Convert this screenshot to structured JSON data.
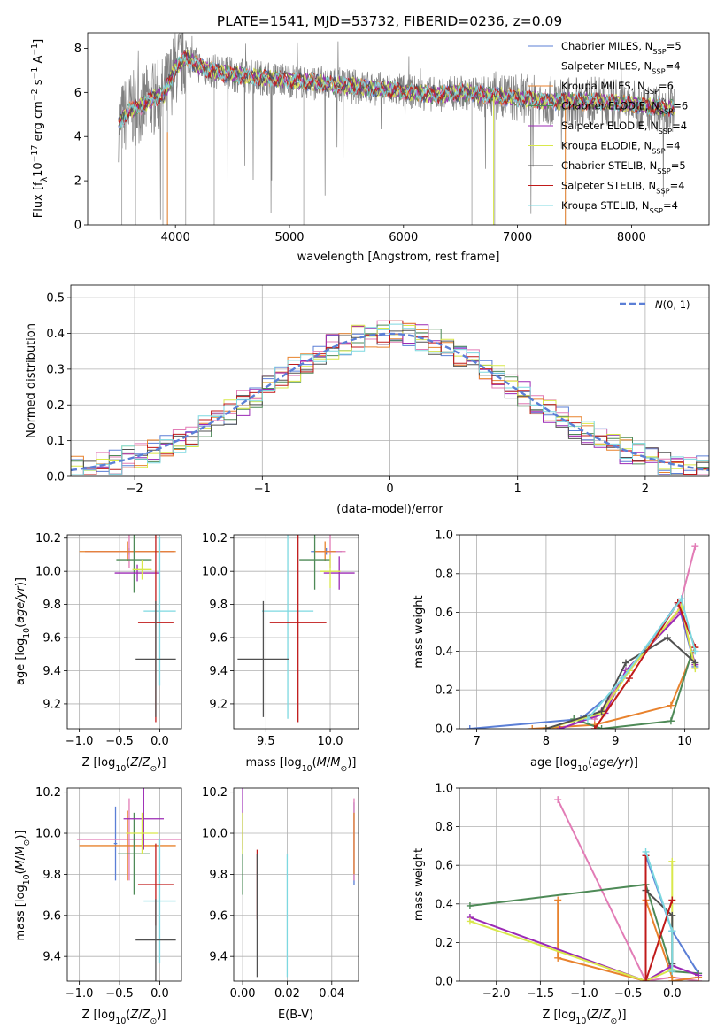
{
  "figure": {
    "title": "PLATE=1541, MJD=53732, FIBERID=0236, z=0.09"
  },
  "chart_data": [
    {
      "id": "spectrum",
      "type": "line",
      "xlabel": "wavelength [Angstrom, rest frame]",
      "ylabel": "Flux [f_λ10^-17 erg cm^-2 s^-1 A^-1]",
      "xlim": [
        3230,
        8680
      ],
      "ylim": [
        0,
        8.7
      ],
      "xticks": [
        4000,
        5000,
        6000,
        7000,
        8000
      ],
      "yticks": [
        0,
        2,
        4,
        6,
        8
      ],
      "grid": false,
      "legend_position": "top-right",
      "continuum": {
        "x": [
          3500,
          3600,
          3700,
          3800,
          3900,
          4000,
          4100,
          4200,
          4300,
          4500,
          4700,
          4900,
          5100,
          5300,
          5500,
          5700,
          5900,
          6100,
          6300,
          6500,
          6700,
          6900,
          7100,
          7300,
          7500,
          7700,
          7900,
          8100,
          8300
        ],
        "y": [
          4.6,
          5.2,
          5.4,
          5.7,
          5.9,
          7.1,
          7.6,
          7.2,
          7.0,
          6.8,
          6.7,
          6.6,
          6.5,
          6.4,
          6.3,
          6.2,
          6.1,
          6.0,
          5.9,
          6.0,
          5.9,
          5.8,
          5.7,
          5.6,
          5.6,
          5.6,
          5.5,
          5.4,
          5.3
        ]
      },
      "series": [
        {
          "label": "Chabrier MILES, N_SSP=5",
          "name": "Chabrier MILES, N",
          "sub": "SSP",
          "val": "=5",
          "color": "#5b7fd6"
        },
        {
          "label": "Salpeter MILES, N_SSP=4",
          "name": "Salpeter MILES, N",
          "sub": "SSP",
          "val": "=4",
          "color": "#e27cb6"
        },
        {
          "label": "Kroupa MILES, N_SSP=6",
          "name": "Kroupa MILES, N",
          "sub": "SSP",
          "val": "=6",
          "color": "#e8822d"
        },
        {
          "label": "Chabrier ELODIE, N_SSP=6",
          "name": "Chabrier ELODIE, N",
          "sub": "SSP",
          "val": "=6",
          "color": "#4e8a57"
        },
        {
          "label": "Salpeter ELODIE, N_SSP=4",
          "name": "Salpeter ELODIE, N",
          "sub": "SSP",
          "val": "=4",
          "color": "#9b29b5"
        },
        {
          "label": "Kroupa ELODIE, N_SSP=4",
          "name": "Kroupa ELODIE, N",
          "sub": "SSP",
          "val": "=4",
          "color": "#d9e84b"
        },
        {
          "label": "Chabrier STELIB, N_SSP=5",
          "name": "Chabrier STELIB, N",
          "sub": "SSP",
          "val": "=5",
          "color": "#505050"
        },
        {
          "label": "Salpeter STELIB, N_SSP=4",
          "name": "Salpeter STELIB, N",
          "sub": "SSP",
          "val": "=4",
          "color": "#c01a1a"
        },
        {
          "label": "Kroupa STELIB, N_SSP=4",
          "name": "Kroupa STELIB, N",
          "sub": "SSP",
          "val": "=4",
          "color": "#7dd8e0"
        }
      ],
      "data_color": "#808080"
    },
    {
      "id": "residuals",
      "type": "histogram",
      "xlabel": "(data-model)/error",
      "ylabel": "Normed distribution",
      "xlim": [
        -2.5,
        2.5
      ],
      "ylim": [
        0,
        0.535
      ],
      "xticks": [
        -2,
        -1,
        0,
        1,
        2
      ],
      "yticks": [
        0.0,
        0.1,
        0.2,
        0.3,
        0.4,
        0.5
      ],
      "grid": true,
      "legend_position": "top-right",
      "legend_label": "N(0,1)",
      "bins": 50,
      "gaussian_color": "#5b7fd6"
    },
    {
      "id": "age_vs_Z",
      "type": "errorbar",
      "xlabel": "Z [log10(Z/Z⊙)]",
      "ylabel": "age [log10(age/yr)]",
      "xlim": [
        -1.15,
        0.27
      ],
      "ylim": [
        9.05,
        10.22
      ],
      "xticks": [
        -1.0,
        -0.5,
        0.0
      ],
      "yticks": [
        9.2,
        9.4,
        9.6,
        9.8,
        10.0,
        10.2
      ],
      "points": [
        {
          "color": "#5b7fd6",
          "x": -0.38,
          "y": 10.12,
          "xerr": 0.55,
          "yerr": 0.02
        },
        {
          "color": "#e27cb6",
          "x": -0.38,
          "y": 10.12,
          "xerr": 0.55,
          "yerr": 0.1
        },
        {
          "color": "#e8822d",
          "x": -0.4,
          "y": 10.12,
          "xerr": 0.6,
          "yerr": 0.06
        },
        {
          "color": "#4e8a57",
          "x": -0.32,
          "y": 10.07,
          "xerr": 0.22,
          "yerr": 0.2
        },
        {
          "color": "#9b29b5",
          "x": -0.28,
          "y": 9.99,
          "xerr": 0.28,
          "yerr": 0.05
        },
        {
          "color": "#d9e84b",
          "x": -0.22,
          "y": 10.01,
          "xerr": 0.12,
          "yerr": 0.06
        },
        {
          "color": "#7dd8e0",
          "x": 0.0,
          "y": 9.76,
          "xerr": 0.2,
          "yerr": 0.45
        },
        {
          "color": "#c01a1a",
          "x": -0.05,
          "y": 9.69,
          "xerr": 0.22,
          "yerr": 0.6
        },
        {
          "color": "#505050",
          "x": -0.05,
          "y": 9.47,
          "xerr": 0.25,
          "yerr": 0.35
        }
      ]
    },
    {
      "id": "age_vs_mass",
      "type": "errorbar",
      "xlabel": "mass [log10(M/M⊙)]",
      "ylabel": "",
      "xlim": [
        9.25,
        10.22
      ],
      "ylim": [
        9.05,
        10.22
      ],
      "xticks": [
        9.5,
        10.0
      ],
      "yticks": [
        9.2,
        9.4,
        9.6,
        9.8,
        10.0,
        10.2
      ],
      "points": [
        {
          "color": "#5b7fd6",
          "x": 9.97,
          "y": 10.12,
          "xerr": 0.12,
          "yerr": 0.02
        },
        {
          "color": "#e27cb6",
          "x": 10.0,
          "y": 10.12,
          "xerr": 0.12,
          "yerr": 0.1
        },
        {
          "color": "#e8822d",
          "x": 9.96,
          "y": 10.12,
          "xerr": 0.08,
          "yerr": 0.06
        },
        {
          "color": "#4e8a57",
          "x": 9.88,
          "y": 10.07,
          "xerr": 0.12,
          "yerr": 0.18
        },
        {
          "color": "#9b29b5",
          "x": 10.07,
          "y": 9.99,
          "xerr": 0.12,
          "yerr": 0.1
        },
        {
          "color": "#d9e84b",
          "x": 10.0,
          "y": 10.0,
          "xerr": 0.08,
          "yerr": 0.1
        },
        {
          "color": "#7dd8e0",
          "x": 9.67,
          "y": 9.76,
          "xerr": 0.2,
          "yerr": 0.65
        },
        {
          "color": "#c01a1a",
          "x": 9.75,
          "y": 9.69,
          "xerr": 0.22,
          "yerr": 0.6
        },
        {
          "color": "#505050",
          "x": 9.48,
          "y": 9.47,
          "xerr": 0.2,
          "yerr": 0.35
        }
      ]
    },
    {
      "id": "mass_weight_vs_age",
      "type": "line",
      "xlabel": "age [log10(age/yr)]",
      "ylabel": "mass weight",
      "xlim": [
        6.75,
        10.35
      ],
      "ylim": [
        0,
        1
      ],
      "xticks": [
        7,
        8,
        9,
        10
      ],
      "yticks": [
        0.0,
        0.2,
        0.4,
        0.6,
        0.8,
        1.0
      ],
      "grid": true,
      "series": [
        {
          "color": "#5b7fd6",
          "x": [
            6.9,
            8.5,
            9.0,
            9.9,
            10.15
          ],
          "y": [
            0.0,
            0.05,
            0.2,
            0.65,
            0.32
          ]
        },
        {
          "color": "#e27cb6",
          "x": [
            8.7,
            9.2,
            9.9,
            10.15
          ],
          "y": [
            0.05,
            0.3,
            0.6,
            0.94
          ]
        },
        {
          "color": "#e8822d",
          "x": [
            7.8,
            8.7,
            9.8,
            10.15
          ],
          "y": [
            0.0,
            0.02,
            0.12,
            0.42
          ]
        },
        {
          "color": "#4e8a57",
          "x": [
            8.4,
            8.8,
            9.8,
            10.1
          ],
          "y": [
            0.05,
            0.0,
            0.04,
            0.39
          ]
        },
        {
          "color": "#9b29b5",
          "x": [
            8.2,
            8.85,
            9.15,
            9.95,
            10.15
          ],
          "y": [
            0.0,
            0.08,
            0.3,
            0.6,
            0.33
          ]
        },
        {
          "color": "#d9e84b",
          "x": [
            8.0,
            8.8,
            9.2,
            9.95,
            10.15
          ],
          "y": [
            0.0,
            0.08,
            0.3,
            0.63,
            0.31
          ]
        },
        {
          "color": "#505050",
          "x": [
            8.0,
            8.8,
            9.15,
            9.75,
            10.15
          ],
          "y": [
            0.0,
            0.09,
            0.34,
            0.47,
            0.34
          ]
        },
        {
          "color": "#c01a1a",
          "x": [
            8.7,
            9.2,
            9.9,
            10.15
          ],
          "y": [
            0.0,
            0.26,
            0.65,
            0.42
          ]
        },
        {
          "color": "#7dd8e0",
          "x": [
            8.6,
            9.1,
            9.95,
            10.15
          ],
          "y": [
            0.05,
            0.26,
            0.67,
            0.4
          ]
        }
      ]
    },
    {
      "id": "mass_vs_Z",
      "type": "errorbar",
      "xlabel": "Z [log10(Z/Z⊙)]",
      "ylabel": "mass [log10(M/M⊙)]",
      "xlim": [
        -1.15,
        0.27
      ],
      "ylim": [
        9.28,
        10.22
      ],
      "xticks": [
        -1.0,
        -0.5,
        0.0
      ],
      "yticks": [
        9.4,
        9.6,
        9.8,
        10.0,
        10.2
      ],
      "points": [
        {
          "color": "#5b7fd6",
          "x": -0.55,
          "y": 9.95,
          "xerr": 0.02,
          "yerr": 0.18
        },
        {
          "color": "#e27cb6",
          "x": -0.38,
          "y": 9.97,
          "xerr": 0.65,
          "yerr": 0.2
        },
        {
          "color": "#e8822d",
          "x": -0.4,
          "y": 9.94,
          "xerr": 0.6,
          "yerr": 0.17
        },
        {
          "color": "#4e8a57",
          "x": -0.32,
          "y": 9.9,
          "xerr": 0.2,
          "yerr": 0.2
        },
        {
          "color": "#9b29b5",
          "x": -0.2,
          "y": 10.07,
          "xerr": 0.25,
          "yerr": 0.15
        },
        {
          "color": "#d9e84b",
          "x": -0.22,
          "y": 10.0,
          "xerr": 0.2,
          "yerr": 0.1
        },
        {
          "color": "#7dd8e0",
          "x": 0.0,
          "y": 9.67,
          "xerr": 0.2,
          "yerr": 0.3
        },
        {
          "color": "#c01a1a",
          "x": -0.05,
          "y": 9.75,
          "xerr": 0.22,
          "yerr": 0.2
        },
        {
          "color": "#505050",
          "x": -0.05,
          "y": 9.48,
          "xerr": 0.25,
          "yerr": 0.2
        }
      ]
    },
    {
      "id": "mass_vs_ebv",
      "type": "errorbar",
      "xlabel": "E(B-V)",
      "ylabel": "",
      "xlim": [
        -0.004,
        0.052
      ],
      "ylim": [
        9.28,
        10.22
      ],
      "xticks": [
        0.0,
        0.02,
        0.04
      ],
      "yticks": [
        9.4,
        9.6,
        9.8,
        10.0,
        10.2
      ],
      "points": [
        {
          "color": "#5b7fd6",
          "x": 0.05,
          "y": 9.95,
          "yerr": 0.2
        },
        {
          "color": "#e27cb6",
          "x": 0.05,
          "y": 9.97,
          "yerr": 0.2
        },
        {
          "color": "#e8822d",
          "x": 0.05,
          "y": 9.95,
          "yerr": 0.15
        },
        {
          "color": "#4e8a57",
          "x": 0.0,
          "y": 9.9,
          "yerr": 0.2
        },
        {
          "color": "#9b29b5",
          "x": 0.0,
          "y": 10.07,
          "yerr": 0.15
        },
        {
          "color": "#d9e84b",
          "x": 0.0,
          "y": 10.0,
          "yerr": 0.1
        },
        {
          "color": "#7dd8e0",
          "x": 0.02,
          "y": 9.6,
          "yerr": 0.3
        },
        {
          "color": "#c01a1a",
          "x": 0.0065,
          "y": 9.75,
          "yerr": 0.17
        },
        {
          "color": "#505050",
          "x": 0.0065,
          "y": 9.6,
          "yerr": 0.3
        }
      ]
    },
    {
      "id": "mass_weight_vs_Z",
      "type": "line",
      "xlabel": "Z [log10(Z/Z⊙)]",
      "ylabel": "mass weight",
      "xlim": [
        -2.42,
        0.42
      ],
      "ylim": [
        0,
        1
      ],
      "xticks": [
        -2.0,
        -1.5,
        -1.0,
        -0.5,
        0.0
      ],
      "yticks": [
        0.0,
        0.2,
        0.4,
        0.6,
        0.8,
        1.0
      ],
      "grid": true,
      "series": [
        {
          "color": "#5b7fd6",
          "x": [
            -0.3,
            0.0,
            0.3
          ],
          "y": [
            0.65,
            0.26,
            0.04
          ]
        },
        {
          "color": "#e27cb6",
          "x": [
            -1.3,
            -0.3,
            0.0,
            0.3
          ],
          "y": [
            0.94,
            0.0,
            0.02,
            0.0
          ]
        },
        {
          "color": "#e8822d",
          "x": [
            -1.3,
            -1.3,
            -0.3,
            -0.3,
            0.0,
            0.0,
            0.3
          ],
          "y": [
            0.42,
            0.12,
            0.0,
            0.42,
            0.02,
            0.0,
            0.02
          ]
        },
        {
          "color": "#4e8a57",
          "x": [
            -2.3,
            -0.3,
            0.0,
            0.3
          ],
          "y": [
            0.39,
            0.5,
            0.05,
            0.04
          ]
        },
        {
          "color": "#9b29b5",
          "x": [
            -2.3,
            -0.3,
            0.0,
            0.3
          ],
          "y": [
            0.33,
            0.0,
            0.08,
            0.03
          ]
        },
        {
          "color": "#d9e84b",
          "x": [
            -2.3,
            -0.3,
            0.0,
            0.0
          ],
          "y": [
            0.31,
            0.0,
            0.06,
            0.62
          ]
        },
        {
          "color": "#505050",
          "x": [
            -0.3,
            0.0,
            0.0
          ],
          "y": [
            0.47,
            0.34,
            0.09
          ]
        },
        {
          "color": "#c01a1a",
          "x": [
            -0.3,
            -0.3,
            0.0
          ],
          "y": [
            0.65,
            0.0,
            0.42
          ]
        },
        {
          "color": "#7dd8e0",
          "x": [
            -0.3,
            0.0,
            0.0
          ],
          "y": [
            0.67,
            0.26,
            0.05
          ]
        }
      ]
    }
  ]
}
